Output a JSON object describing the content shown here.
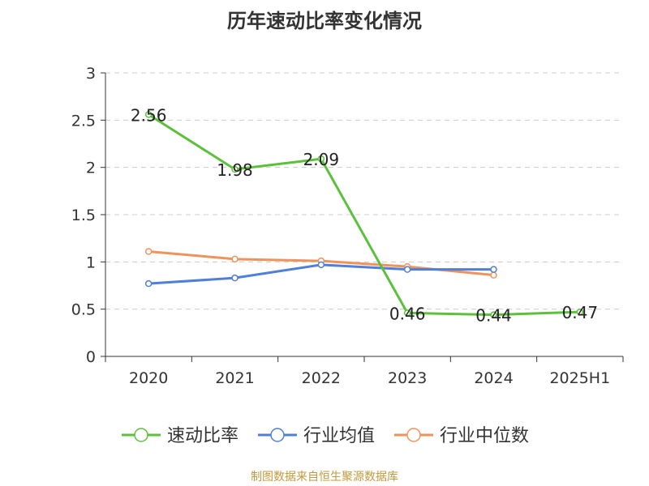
{
  "chart_data": {
    "type": "line",
    "title": "历年速动比率变化情况",
    "categories": [
      "2020",
      "2021",
      "2022",
      "2023",
      "2024",
      "2025H1"
    ],
    "y_ticks": [
      "0",
      "0.5",
      "1",
      "1.5",
      "2",
      "2.5",
      "3"
    ],
    "ylim": [
      0,
      3
    ],
    "grid": true,
    "legend_position": "bottom",
    "series": [
      {
        "name": "速动比率",
        "color": "#5cc13a",
        "values": [
          2.56,
          1.98,
          2.09,
          0.46,
          0.44,
          0.47
        ],
        "labels": [
          "2.56",
          "1.98",
          "2.09",
          "0.46",
          "0.44",
          "0.47"
        ]
      },
      {
        "name": "行业均值",
        "color": "#4f7fd8",
        "values": [
          0.77,
          0.83,
          0.97,
          0.92,
          0.92,
          null
        ]
      },
      {
        "name": "行业中位数",
        "color": "#f0925b",
        "values": [
          1.11,
          1.03,
          1.01,
          0.95,
          0.86,
          null
        ]
      }
    ]
  },
  "source": "制图数据来自恒生聚源数据库"
}
